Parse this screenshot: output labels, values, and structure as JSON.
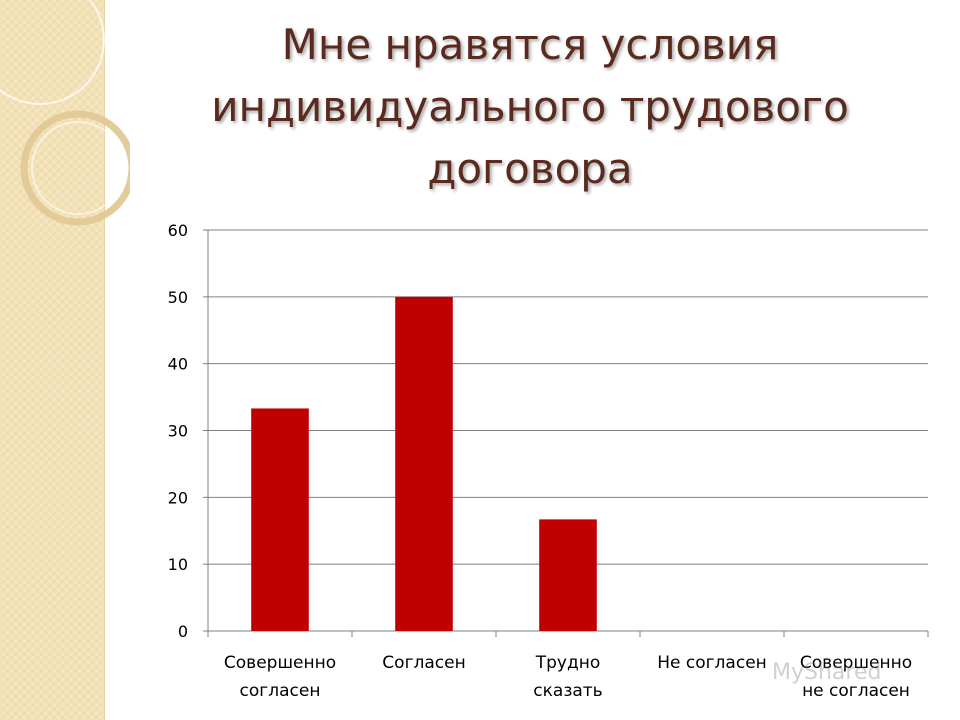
{
  "slide": {
    "title_lines": [
      "Мне нравятся условия",
      "индивидуального трудового",
      "договора"
    ],
    "watermark": "MyShared"
  },
  "colors": {
    "bar": "#c00000",
    "title": "#5a2a1e",
    "grid": "#7f7f7f"
  },
  "chart_data": {
    "type": "bar",
    "title": "Мне нравятся условия индивидуального трудового договора",
    "categories": [
      [
        "Совершенно",
        "согласен"
      ],
      [
        "Согласен"
      ],
      [
        "Трудно",
        "сказать"
      ],
      [
        "Не согласен"
      ],
      [
        "Совершенно",
        "не согласен"
      ]
    ],
    "values": [
      33.3,
      50,
      16.7,
      0,
      0
    ],
    "ylim": [
      0,
      60
    ],
    "yticks": [
      0,
      10,
      20,
      30,
      40,
      50,
      60
    ],
    "grid": true,
    "legend": "none"
  }
}
